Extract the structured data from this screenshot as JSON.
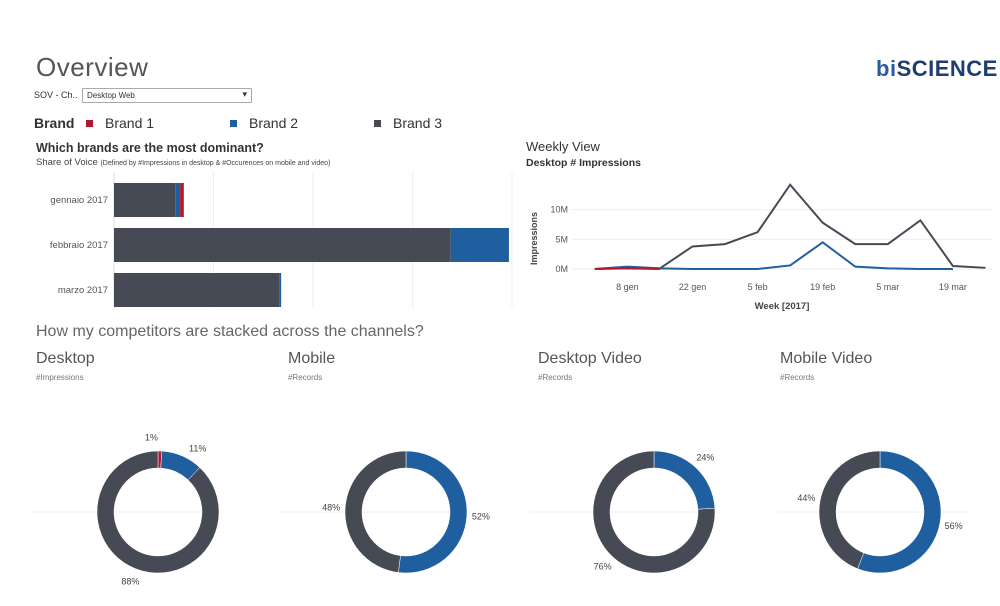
{
  "page": {
    "title": "Overview"
  },
  "logo": {
    "prefix": "bi",
    "suffix": "SCIENCE"
  },
  "filter": {
    "label": "SOV - Ch..",
    "value": "Desktop Web"
  },
  "legend": {
    "header": "Brand",
    "items": [
      {
        "label": "Brand 1",
        "color": "#b2182b"
      },
      {
        "label": "Brand 2",
        "color": "#1f5fa0"
      },
      {
        "label": "Brand 3",
        "color": "#454a55"
      }
    ]
  },
  "sov": {
    "title": "Which brands are the most dominant?",
    "subtitle": "Share of Voice",
    "subtitle_note": "(Defined by #Impressions in desktop & #Occurences on mobile and video)"
  },
  "weekly": {
    "title": "Weekly View",
    "subtitle": "Desktop # Impressions"
  },
  "stacked_question": "How my competitors are stacked across the channels?",
  "channels": [
    {
      "title": "Desktop",
      "subtitle": "#Impressions"
    },
    {
      "title": "Mobile",
      "subtitle": "#Records"
    },
    {
      "title": "Desktop Video",
      "subtitle": "#Records"
    },
    {
      "title": "Mobile Video",
      "subtitle": "#Records"
    }
  ],
  "chart_data": [
    {
      "type": "bar",
      "orientation": "horizontal",
      "stacked": true,
      "categories": [
        "gennaio 2017",
        "febbraio 2017",
        "marzo 2017"
      ],
      "series": [
        {
          "name": "Brand 3",
          "color": "#454a55",
          "values": [
            100,
            550,
            270
          ]
        },
        {
          "name": "Brand 2",
          "color": "#1f5fa0",
          "values": [
            8,
            95,
            3
          ]
        },
        {
          "name": "Brand 1",
          "color": "#b2182b",
          "values": [
            6,
            0,
            0
          ]
        }
      ],
      "xlim": [
        0,
        650
      ],
      "grid": true
    },
    {
      "type": "line",
      "x_tick_labels": [
        "8 gen",
        "22 gen",
        "5 feb",
        "19 feb",
        "5 mar",
        "19 mar"
      ],
      "x": [
        1,
        2,
        3,
        4,
        5,
        6,
        7,
        8,
        9,
        10,
        11,
        12,
        13
      ],
      "xlim": [
        0.3,
        13.2
      ],
      "xlabel": "Week [2017]",
      "ylabel": "Impressions",
      "y_ticks": [
        "0M",
        "5M",
        "10M"
      ],
      "ylim": [
        0,
        15
      ],
      "series": [
        {
          "name": "Brand 3",
          "color": "#454a55",
          "values": [
            0,
            0.3,
            0.1,
            3.8,
            4.2,
            6.2,
            14.2,
            7.8,
            4.2,
            4.2,
            8.2,
            0.5,
            0.2
          ]
        },
        {
          "name": "Brand 2",
          "color": "#1f5fa0",
          "values": [
            0,
            0.4,
            0.1,
            0,
            0,
            0,
            0.6,
            4.5,
            0.4,
            0.1,
            0,
            0,
            null
          ]
        },
        {
          "name": "Brand 1",
          "color": "#b2182b",
          "values": [
            0,
            0.1,
            0,
            null,
            null,
            null,
            null,
            null,
            null,
            null,
            null,
            null,
            null
          ]
        }
      ],
      "grid": true
    },
    {
      "type": "pie",
      "donut": true,
      "title": "Desktop",
      "slices": [
        {
          "name": "Brand 1",
          "value": 1,
          "label": "1%"
        },
        {
          "name": "Brand 2",
          "value": 11,
          "label": "11%"
        },
        {
          "name": "Brand 3",
          "value": 88,
          "label": "88%"
        }
      ]
    },
    {
      "type": "pie",
      "donut": true,
      "title": "Mobile",
      "slices": [
        {
          "name": "Brand 2",
          "value": 52,
          "label": "52%"
        },
        {
          "name": "Brand 3",
          "value": 48,
          "label": "48%"
        }
      ]
    },
    {
      "type": "pie",
      "donut": true,
      "title": "Desktop Video",
      "slices": [
        {
          "name": "Brand 2",
          "value": 24,
          "label": "24%"
        },
        {
          "name": "Brand 3",
          "value": 76,
          "label": "76%"
        }
      ]
    },
    {
      "type": "pie",
      "donut": true,
      "title": "Mobile Video",
      "slices": [
        {
          "name": "Brand 2",
          "value": 56,
          "label": "56%"
        },
        {
          "name": "Brand 3",
          "value": 44,
          "label": "44%"
        }
      ]
    }
  ]
}
